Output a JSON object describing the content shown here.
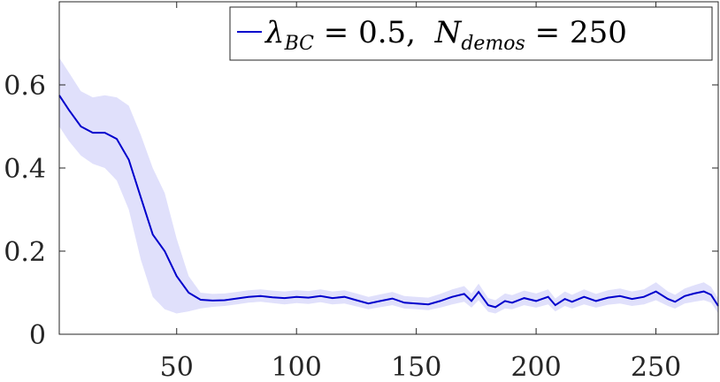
{
  "chart_data": {
    "type": "area",
    "title": "",
    "xlabel": "",
    "ylabel": "",
    "xlim": [
      1,
      276
    ],
    "ylim": [
      0,
      0.8
    ],
    "xticks": [
      50,
      100,
      150,
      200,
      250
    ],
    "yticks": [
      0,
      0.2,
      0.4,
      0.6
    ],
    "xtick_labels": [
      "50",
      "100",
      "150",
      "200",
      "250"
    ],
    "ytick_labels": [
      "0",
      "0.2",
      "0.4",
      "0.6"
    ],
    "grid": false,
    "box": true,
    "legend": {
      "location": "top-right",
      "symbol": "λ",
      "sub1": "BC",
      "middle": " = 0.5,  ",
      "n": "N",
      "sub2": "demos",
      "end": " = 250"
    },
    "colors": {
      "line": "#0000cc",
      "band": "#e0e0fb",
      "axis": "#262626"
    },
    "series": [
      {
        "name": "λBC = 0.5, Ndemos = 250",
        "x": [
          1,
          5,
          10,
          15,
          20,
          25,
          30,
          35,
          40,
          45,
          50,
          55,
          60,
          65,
          70,
          75,
          80,
          85,
          90,
          95,
          100,
          105,
          110,
          115,
          120,
          125,
          130,
          135,
          140,
          145,
          150,
          155,
          160,
          165,
          170,
          173,
          176,
          180,
          183,
          187,
          190,
          195,
          200,
          205,
          208,
          212,
          215,
          220,
          225,
          230,
          235,
          240,
          245,
          250,
          255,
          258,
          262,
          266,
          270,
          273,
          276
        ],
        "y": [
          0.575,
          0.54,
          0.5,
          0.485,
          0.485,
          0.47,
          0.42,
          0.33,
          0.24,
          0.2,
          0.14,
          0.1,
          0.083,
          0.081,
          0.082,
          0.086,
          0.09,
          0.092,
          0.089,
          0.087,
          0.09,
          0.088,
          0.092,
          0.087,
          0.09,
          0.082,
          0.074,
          0.08,
          0.086,
          0.076,
          0.074,
          0.072,
          0.08,
          0.09,
          0.097,
          0.08,
          0.102,
          0.07,
          0.065,
          0.08,
          0.076,
          0.087,
          0.08,
          0.09,
          0.07,
          0.085,
          0.078,
          0.09,
          0.08,
          0.088,
          0.092,
          0.085,
          0.09,
          0.103,
          0.085,
          0.078,
          0.092,
          0.098,
          0.103,
          0.095,
          0.068
        ],
        "lower": [
          0.5,
          0.465,
          0.43,
          0.41,
          0.4,
          0.37,
          0.3,
          0.18,
          0.09,
          0.06,
          0.05,
          0.055,
          0.062,
          0.066,
          0.068,
          0.072,
          0.076,
          0.078,
          0.075,
          0.072,
          0.075,
          0.073,
          0.077,
          0.072,
          0.074,
          0.067,
          0.06,
          0.065,
          0.07,
          0.062,
          0.06,
          0.058,
          0.064,
          0.072,
          0.078,
          0.064,
          0.082,
          0.054,
          0.05,
          0.062,
          0.06,
          0.07,
          0.064,
          0.072,
          0.055,
          0.068,
          0.062,
          0.072,
          0.064,
          0.071,
          0.074,
          0.068,
          0.072,
          0.082,
          0.068,
          0.062,
          0.074,
          0.078,
          0.082,
          0.076,
          0.05
        ],
        "upper": [
          0.665,
          0.63,
          0.585,
          0.57,
          0.575,
          0.57,
          0.55,
          0.48,
          0.4,
          0.34,
          0.23,
          0.14,
          0.1,
          0.097,
          0.098,
          0.102,
          0.106,
          0.108,
          0.105,
          0.103,
          0.106,
          0.104,
          0.108,
          0.103,
          0.106,
          0.098,
          0.09,
          0.096,
          0.102,
          0.092,
          0.09,
          0.088,
          0.097,
          0.108,
          0.116,
          0.098,
          0.122,
          0.087,
          0.082,
          0.098,
          0.094,
          0.105,
          0.098,
          0.108,
          0.086,
          0.103,
          0.095,
          0.108,
          0.097,
          0.106,
          0.11,
          0.103,
          0.108,
          0.125,
          0.103,
          0.095,
          0.11,
          0.118,
          0.125,
          0.114,
          0.086
        ]
      }
    ]
  }
}
